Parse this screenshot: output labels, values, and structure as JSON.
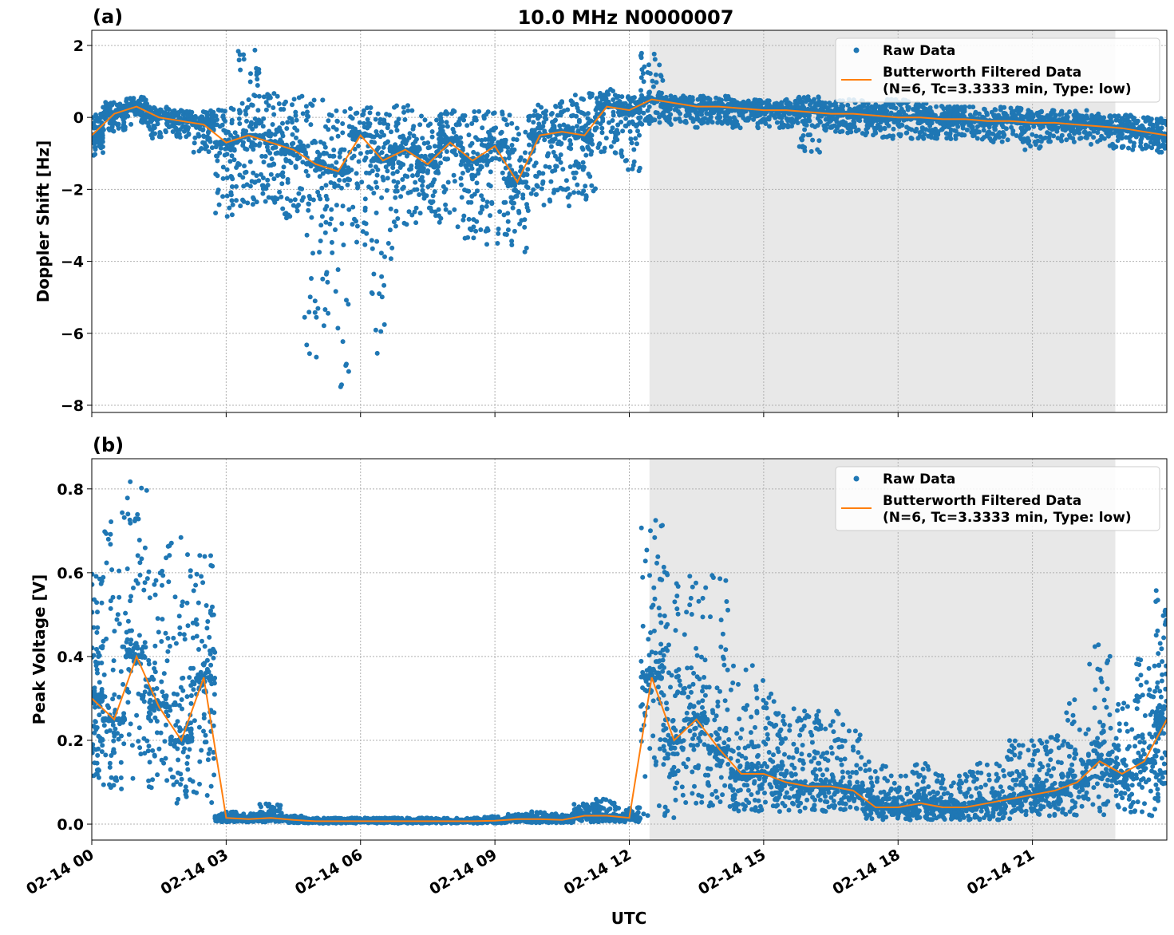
{
  "title": "10.0 MHz N0000007",
  "xlabel": "UTC",
  "x_tick_labels": [
    "02-14 00",
    "02-14 03",
    "02-14 06",
    "02-14 09",
    "02-14 12",
    "02-14 15",
    "02-14 18",
    "02-14 21"
  ],
  "colors": {
    "raw": "#1f77b4",
    "filtered": "#ff7f0e",
    "shade": "#e8e8e8"
  },
  "chart_data": [
    {
      "type": "scatter",
      "panel_label": "(a)",
      "ylabel": "Doppler Shift [Hz]",
      "xlim_hours_utc": [
        0,
        24
      ],
      "ylim": [
        -8.2,
        2.42
      ],
      "y_ticks": [
        2,
        0,
        -2,
        -4,
        -6,
        -8
      ],
      "y_tick_labels": [
        "2",
        "0",
        "−2",
        "−4",
        "−6",
        "−8"
      ],
      "grid": true,
      "legend_placement": "top-right",
      "shaded_region_hours_utc": [
        12.45,
        22.85
      ],
      "legend": [
        "Raw Data",
        "Butterworth Filtered Data",
        "(N=6, Tc=3.3333 min, Type: low)"
      ],
      "x_hours": [
        0,
        0.5,
        1,
        1.5,
        2,
        2.5,
        3,
        3.5,
        4,
        4.5,
        5,
        5.5,
        6,
        6.5,
        7,
        7.5,
        8,
        8.5,
        9,
        9.5,
        10,
        10.5,
        11,
        11.5,
        12,
        12.5,
        13,
        13.5,
        14,
        14.5,
        15,
        15.5,
        16,
        16.5,
        17,
        17.5,
        18,
        18.5,
        19,
        19.5,
        20,
        20.5,
        21,
        21.5,
        22,
        22.5,
        23,
        23.5,
        24
      ],
      "series": [
        {
          "name": "Butterworth Filtered Data",
          "values": [
            -0.5,
            0.1,
            0.3,
            0.0,
            -0.1,
            -0.2,
            -0.7,
            -0.5,
            -0.7,
            -0.9,
            -1.3,
            -1.5,
            -0.5,
            -1.2,
            -0.9,
            -1.3,
            -0.7,
            -1.2,
            -0.8,
            -1.8,
            -0.5,
            -0.4,
            -0.5,
            0.3,
            0.2,
            0.5,
            0.4,
            0.3,
            0.3,
            0.25,
            0.2,
            0.2,
            0.15,
            0.1,
            0.1,
            0.05,
            0.0,
            0.0,
            -0.05,
            -0.05,
            -0.1,
            -0.1,
            -0.15,
            -0.15,
            -0.2,
            -0.25,
            -0.3,
            -0.4,
            -0.5
          ]
        },
        {
          "name": "Raw Data",
          "low": [
            -1.1,
            -0.4,
            -0.2,
            -0.6,
            -0.6,
            -1.0,
            -2.8,
            -2.5,
            -2.5,
            -3.0,
            -6.7,
            -7.7,
            -4.0,
            -6.8,
            -3.2,
            -3.0,
            -3.2,
            -3.5,
            -3.6,
            -3.8,
            -2.5,
            -2.5,
            -2.3,
            -1.0,
            -1.5,
            -0.2,
            -0.2,
            -0.3,
            -0.2,
            -0.3,
            -0.3,
            -0.3,
            -1.0,
            -0.5,
            -0.5,
            -0.6,
            -0.7,
            -0.6,
            -0.6,
            -0.6,
            -0.7,
            -0.7,
            -0.9,
            -0.7,
            -0.7,
            -0.8,
            -0.9,
            -0.9,
            -1.0
          ],
          "high": [
            0.1,
            0.5,
            0.6,
            0.3,
            0.2,
            0.2,
            0.3,
            1.9,
            0.7,
            0.6,
            0.5,
            0.2,
            0.3,
            0.2,
            0.4,
            0.2,
            0.2,
            0.2,
            0.2,
            0.2,
            0.4,
            0.5,
            0.7,
            0.8,
            0.6,
            1.8,
            0.6,
            0.6,
            0.6,
            0.5,
            0.5,
            0.5,
            0.6,
            0.5,
            0.5,
            0.4,
            0.5,
            0.4,
            0.4,
            0.3,
            0.3,
            0.3,
            0.2,
            0.2,
            0.2,
            0.1,
            0.1,
            0.0,
            0.0
          ]
        }
      ]
    },
    {
      "type": "scatter",
      "panel_label": "(b)",
      "ylabel": "Peak Voltage [V]",
      "xlim_hours_utc": [
        0,
        24
      ],
      "ylim": [
        -0.038,
        0.872
      ],
      "y_ticks": [
        0.0,
        0.2,
        0.4,
        0.6,
        0.8
      ],
      "y_tick_labels": [
        "0.0",
        "0.2",
        "0.4",
        "0.6",
        "0.8"
      ],
      "grid": true,
      "legend_placement": "top-right",
      "shaded_region_hours_utc": [
        12.45,
        22.85
      ],
      "legend": [
        "Raw Data",
        "Butterworth Filtered Data",
        "(N=6, Tc=3.3333 min, Type: low)"
      ],
      "x_hours": [
        0,
        0.5,
        1,
        1.5,
        2,
        2.5,
        3,
        3.5,
        4,
        4.5,
        5,
        5.5,
        6,
        6.5,
        7,
        7.5,
        8,
        8.5,
        9,
        9.5,
        10,
        10.5,
        11,
        11.5,
        12,
        12.5,
        13,
        13.5,
        14,
        14.5,
        15,
        15.5,
        16,
        16.5,
        17,
        17.5,
        18,
        18.5,
        19,
        19.5,
        20,
        20.5,
        21,
        21.5,
        22,
        22.5,
        23,
        23.5,
        24
      ],
      "series": [
        {
          "name": "Butterworth Filtered Data",
          "values": [
            0.3,
            0.25,
            0.4,
            0.28,
            0.2,
            0.35,
            0.015,
            0.012,
            0.015,
            0.01,
            0.007,
            0.007,
            0.007,
            0.007,
            0.007,
            0.007,
            0.007,
            0.007,
            0.008,
            0.012,
            0.012,
            0.01,
            0.02,
            0.02,
            0.015,
            0.35,
            0.2,
            0.25,
            0.18,
            0.12,
            0.12,
            0.1,
            0.09,
            0.09,
            0.08,
            0.04,
            0.04,
            0.05,
            0.04,
            0.04,
            0.05,
            0.06,
            0.07,
            0.08,
            0.1,
            0.15,
            0.12,
            0.15,
            0.25
          ]
        },
        {
          "name": "Raw Data",
          "low": [
            0.1,
            0.08,
            0.1,
            0.08,
            0.05,
            0.05,
            0.005,
            0.005,
            0.005,
            0.003,
            0.002,
            0.002,
            0.002,
            0.002,
            0.002,
            0.002,
            0.002,
            0.002,
            0.002,
            0.004,
            0.003,
            0.003,
            0.005,
            0.005,
            0.005,
            0.02,
            0.01,
            0.05,
            0.04,
            0.03,
            0.03,
            0.03,
            0.03,
            0.03,
            0.03,
            0.01,
            0.01,
            0.01,
            0.01,
            0.01,
            0.01,
            0.01,
            0.02,
            0.02,
            0.02,
            0.02,
            0.02,
            0.02,
            0.05
          ],
          "high": [
            0.63,
            0.75,
            0.83,
            0.68,
            0.7,
            0.65,
            0.03,
            0.025,
            0.05,
            0.02,
            0.015,
            0.015,
            0.015,
            0.015,
            0.015,
            0.015,
            0.015,
            0.015,
            0.02,
            0.025,
            0.03,
            0.025,
            0.05,
            0.06,
            0.04,
            0.74,
            0.65,
            0.6,
            0.6,
            0.4,
            0.35,
            0.28,
            0.28,
            0.28,
            0.25,
            0.15,
            0.12,
            0.15,
            0.12,
            0.13,
            0.15,
            0.2,
            0.22,
            0.24,
            0.3,
            0.45,
            0.3,
            0.4,
            0.58
          ]
        }
      ]
    }
  ]
}
